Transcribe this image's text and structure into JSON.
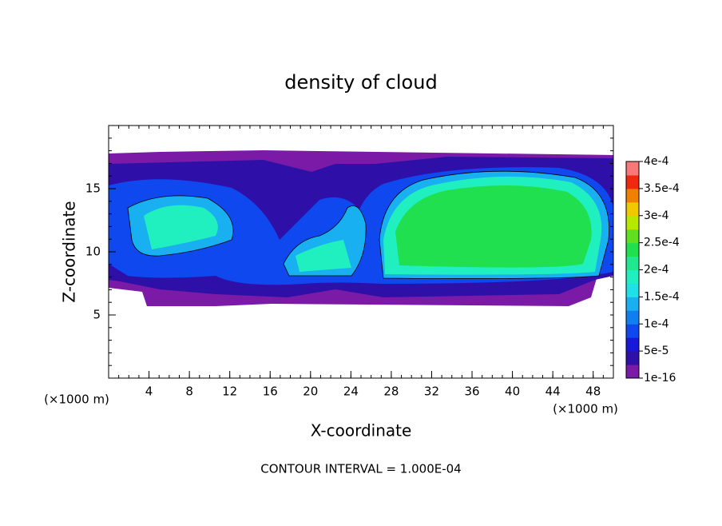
{
  "chart_data": {
    "type": "contour",
    "title": "density of cloud",
    "x_label": "X-coordinate",
    "y_label": "Z-coordinate",
    "x_unit": "(×1000 m)",
    "note": "CONTOUR INTERVAL = 1.000E-04",
    "xlim": [
      0,
      50
    ],
    "xticks": [
      4,
      8,
      12,
      16,
      20,
      24,
      28,
      32,
      36,
      40,
      44,
      48
    ],
    "ylim": [
      0,
      20
    ],
    "yticks": [
      5,
      10,
      15
    ],
    "colorbar": {
      "clim": [
        1e-16,
        0.0004
      ],
      "ticks": [
        {
          "value": 1e-16,
          "label": "1e-16"
        },
        {
          "value": 5e-05,
          "label": "5e-5"
        },
        {
          "value": 0.0001,
          "label": "1e-4"
        },
        {
          "value": 0.00015,
          "label": "1.5e-4"
        },
        {
          "value": 0.0002,
          "label": "2e-4"
        },
        {
          "value": 0.00025,
          "label": "2.5e-4"
        },
        {
          "value": 0.0003,
          "label": "3e-4"
        },
        {
          "value": 0.00035,
          "label": "3.5e-4"
        },
        {
          "value": 0.0004,
          "label": "4e-4"
        }
      ],
      "colors": [
        "#7a1aa6",
        "#2e10a8",
        "#1818d8",
        "#1048f0",
        "#1080f0",
        "#18b0f0",
        "#20e0e8",
        "#20f0c0",
        "#20e890",
        "#20e050",
        "#60e020",
        "#b8e800",
        "#f0c800",
        "#f08000",
        "#f02810",
        "#f87878"
      ]
    }
  }
}
